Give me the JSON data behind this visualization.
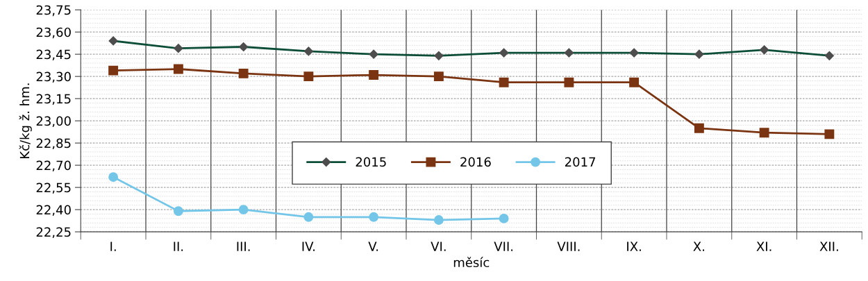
{
  "chart_data": {
    "type": "line",
    "xlabel": "měsíc",
    "ylabel": "Kč/kg ž. hm.",
    "categories": [
      "I.",
      "II.",
      "III.",
      "IV.",
      "V.",
      "VI.",
      "VII.",
      "VIII.",
      "IX.",
      "X.",
      "XI.",
      "XII."
    ],
    "series": [
      {
        "name": "2015",
        "color": "#0b4d36",
        "marker": "diamond",
        "values": [
          23.54,
          23.49,
          23.5,
          23.47,
          23.45,
          23.44,
          23.46,
          23.46,
          23.46,
          23.45,
          23.48,
          23.44
        ]
      },
      {
        "name": "2016",
        "color": "#7b3411",
        "marker": "square",
        "values": [
          23.34,
          23.35,
          23.32,
          23.3,
          23.31,
          23.3,
          23.26,
          23.26,
          23.26,
          22.95,
          22.92,
          22.91
        ]
      },
      {
        "name": "2017",
        "color": "#74c6e8",
        "marker": "circle",
        "values": [
          22.62,
          22.39,
          22.4,
          22.35,
          22.35,
          22.33,
          22.34,
          null,
          null,
          null,
          null,
          null
        ]
      }
    ],
    "ylim": [
      22.25,
      23.75
    ],
    "yticks": [
      {
        "value": 22.25,
        "label": "22,25"
      },
      {
        "value": 22.4,
        "label": "22,40"
      },
      {
        "value": 22.55,
        "label": "22,55"
      },
      {
        "value": 22.7,
        "label": "22,70"
      },
      {
        "value": 22.85,
        "label": "22,85"
      },
      {
        "value": 23.0,
        "label": "23,00"
      },
      {
        "value": 23.15,
        "label": "23,15"
      },
      {
        "value": 23.3,
        "label": "23,30"
      },
      {
        "value": 23.45,
        "label": "23,45"
      },
      {
        "value": 23.6,
        "label": "23,60"
      },
      {
        "value": 23.75,
        "label": "23,75"
      }
    ],
    "grid": true,
    "legend": "center",
    "line_style": "solid"
  }
}
